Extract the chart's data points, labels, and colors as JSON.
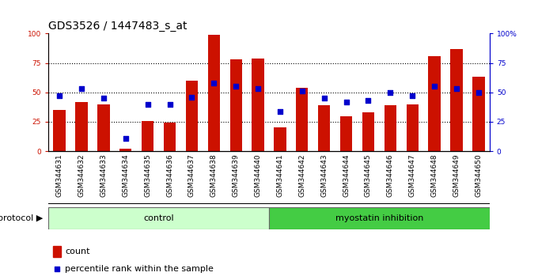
{
  "title": "GDS3526 / 1447483_s_at",
  "samples": [
    "GSM344631",
    "GSM344632",
    "GSM344633",
    "GSM344634",
    "GSM344635",
    "GSM344636",
    "GSM344637",
    "GSM344638",
    "GSM344639",
    "GSM344640",
    "GSM344641",
    "GSM344642",
    "GSM344643",
    "GSM344644",
    "GSM344645",
    "GSM344646",
    "GSM344647",
    "GSM344648",
    "GSM344649",
    "GSM344650"
  ],
  "bar_values": [
    35,
    42,
    40,
    2,
    26,
    24,
    60,
    99,
    78,
    79,
    20,
    54,
    39,
    30,
    33,
    39,
    40,
    81,
    87,
    63
  ],
  "dot_values": [
    47,
    53,
    45,
    11,
    40,
    40,
    46,
    58,
    55,
    53,
    34,
    51,
    45,
    42,
    43,
    50,
    47,
    55,
    53,
    50
  ],
  "control_count": 10,
  "bar_color": "#cc1100",
  "dot_color": "#0000cc",
  "control_color": "#ccffcc",
  "myostatin_color": "#44cc44",
  "xtick_bg": "#cccccc",
  "plot_bg": "#ffffff",
  "title_fontsize": 10,
  "tick_fontsize": 6.5,
  "label_fontsize": 8,
  "protocol_label": "protocol",
  "control_label": "control",
  "myostatin_label": "myostatin inhibition",
  "legend_count": "count",
  "legend_pct": "percentile rank within the sample"
}
